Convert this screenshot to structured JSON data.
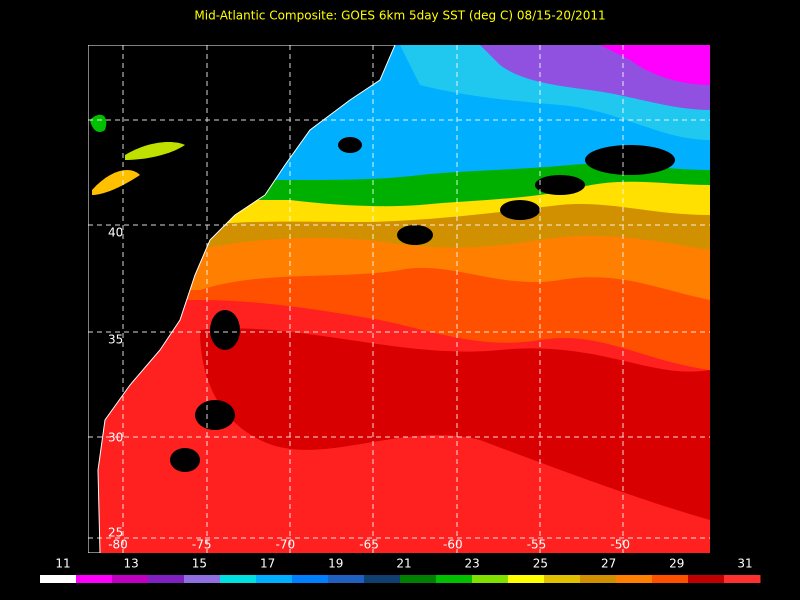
{
  "title": "Mid-Atlantic Composite: GOES 6km 5day SST (deg C) 08/15-20/2011",
  "map": {
    "lon_labels": [
      "-80",
      "-75",
      "-70",
      "-65",
      "-60",
      "-55",
      "-50"
    ],
    "lat_labels": [
      "40",
      "35",
      "30",
      "25"
    ]
  },
  "colorbar": {
    "labels": [
      "11",
      "13",
      "15",
      "17",
      "19",
      "21",
      "23",
      "25",
      "27",
      "29",
      "31"
    ],
    "colors": [
      "#ffffff",
      "#ff00ff",
      "#c000c0",
      "#8020c0",
      "#9070e0",
      "#00e0e0",
      "#00b0ff",
      "#0080ff",
      "#2060c0",
      "#104070",
      "#008000",
      "#00c000",
      "#80e000",
      "#ffff00",
      "#e0c000",
      "#d09000",
      "#ff8000",
      "#ff5000",
      "#c00000",
      "#ff3030"
    ]
  }
}
